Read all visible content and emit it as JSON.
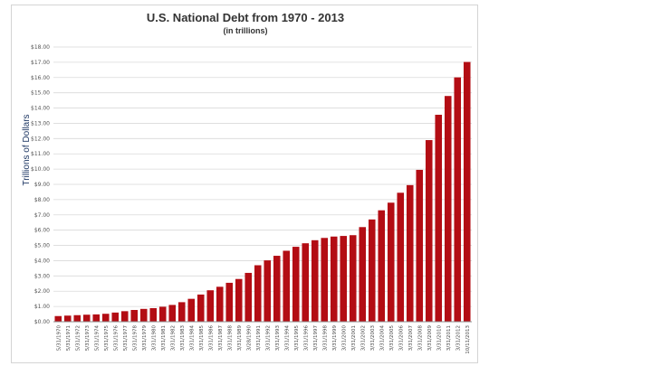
{
  "colors": {
    "bar": "#b30d14",
    "grid": "#d9d9d9",
    "ylabel": "#1f3864",
    "title": "#333333"
  },
  "chart_data": {
    "type": "bar",
    "title": "U.S. National Debt from 1970 - 2013",
    "subtitle": "(in trillions)",
    "xlabel": "",
    "ylabel": "Trillions of Dollars",
    "ylim": [
      0,
      18
    ],
    "ytick_step": 1,
    "ytick_labels": [
      "$0.00",
      "$1.00",
      "$2.00",
      "$3.00",
      "$4.00",
      "$5.00",
      "$6.00",
      "$7.00",
      "$8.00",
      "$9.00",
      "$10.00",
      "$11.00",
      "$12.00",
      "$13.00",
      "$14.00",
      "$15.00",
      "$16.00",
      "$17.00",
      "$18.00"
    ],
    "grid": true,
    "legend": "none",
    "categories": [
      "5/31/1970",
      "5/31/1971",
      "5/31/1972",
      "5/31/1973",
      "5/31/1974",
      "5/31/1975",
      "5/31/1976",
      "5/31/1977",
      "5/31/1978",
      "3/31/1979",
      "3/31/1980",
      "3/31/1981",
      "3/31/1982",
      "3/31/1983",
      "3/31/1984",
      "3/31/1985",
      "3/31/1986",
      "3/31/1987",
      "3/31/1988",
      "3/31/1989",
      "3/28/1990",
      "3/31/1991",
      "3/31/1992",
      "3/31/1993",
      "3/31/1994",
      "3/31/1995",
      "3/31/1996",
      "3/31/1997",
      "3/31/1998",
      "3/31/1999",
      "3/31/2000",
      "3/31/2001",
      "3/31/2002",
      "3/31/2003",
      "3/31/2004",
      "3/31/2005",
      "3/31/2006",
      "3/31/2007",
      "3/31/2008",
      "3/31/2009",
      "3/31/2010",
      "3/31/2011",
      "3/31/2012",
      "10/11/2013"
    ],
    "values": [
      0.37,
      0.4,
      0.43,
      0.46,
      0.48,
      0.52,
      0.6,
      0.69,
      0.77,
      0.84,
      0.89,
      0.98,
      1.1,
      1.28,
      1.5,
      1.78,
      2.06,
      2.29,
      2.55,
      2.8,
      3.2,
      3.7,
      4.02,
      4.32,
      4.65,
      4.91,
      5.14,
      5.34,
      5.49,
      5.58,
      5.62,
      5.67,
      6.2,
      6.7,
      7.3,
      7.8,
      8.45,
      8.95,
      9.95,
      11.9,
      13.56,
      14.79,
      16.01,
      17.02
    ]
  }
}
